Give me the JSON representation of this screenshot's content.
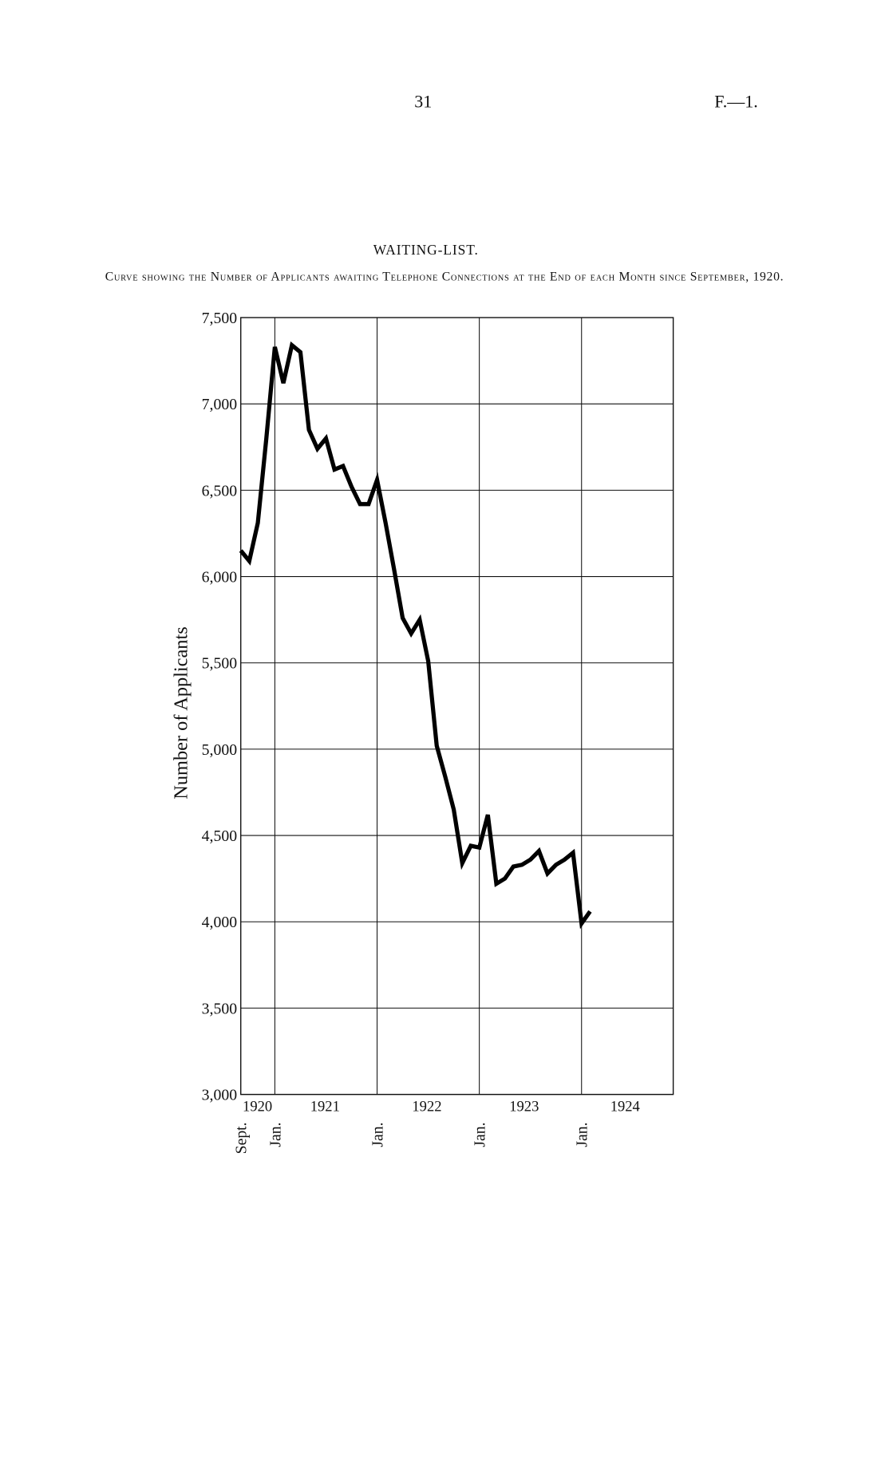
{
  "header": {
    "page_number": "31",
    "reference": "F.—1."
  },
  "chart_data": {
    "type": "line",
    "title": "WAITING-LIST.",
    "subtitle": "Curve showing the Number of Applicants awaiting Telephone Connections at the End of each Month since September, 1920.",
    "y_label": "Number of Applicants",
    "years": [
      "1920",
      "1921",
      "1922",
      "1923",
      "1924"
    ],
    "categories": [
      "Sept.",
      null,
      null,
      null,
      "Jan.",
      null,
      null,
      null,
      null,
      null,
      null,
      null,
      null,
      null,
      null,
      null,
      "Jan.",
      null,
      null,
      null,
      null,
      null,
      null,
      null,
      null,
      null,
      null,
      null,
      "Jan.",
      null,
      null,
      null,
      null,
      null,
      null,
      null,
      null,
      null,
      null,
      null,
      "Jan.",
      null
    ],
    "series": [
      {
        "color": "#000000",
        "values": [
          6150,
          6090,
          6310,
          6800,
          7330,
          7120,
          7340,
          7300,
          6850,
          6740,
          6800,
          6620,
          6640,
          6520,
          6420,
          6420,
          6560,
          6310,
          6040,
          5760,
          5670,
          5750,
          5510,
          5020,
          4840,
          4650,
          4340,
          4440,
          4430,
          4620,
          4220,
          4250,
          4320,
          4330,
          4360,
          4410,
          4280,
          4330,
          4360,
          4400,
          3990,
          4060
        ]
      }
    ],
    "ylim": [
      3000,
      7500
    ],
    "yticks": [
      {
        "value": 3000,
        "label": "3,000"
      },
      {
        "value": 3500,
        "label": "3,500"
      },
      {
        "value": 4000,
        "label": "4,000"
      },
      {
        "value": 4500,
        "label": "4,500"
      },
      {
        "value": 5000,
        "label": "5,000"
      },
      {
        "value": 5500,
        "label": "5,500"
      },
      {
        "value": 6000,
        "label": "6,000"
      },
      {
        "value": 6500,
        "label": "6,500"
      },
      {
        "value": 7000,
        "label": "7,000"
      },
      {
        "value": 7500,
        "label": "7,500"
      }
    ],
    "grid": true
  }
}
